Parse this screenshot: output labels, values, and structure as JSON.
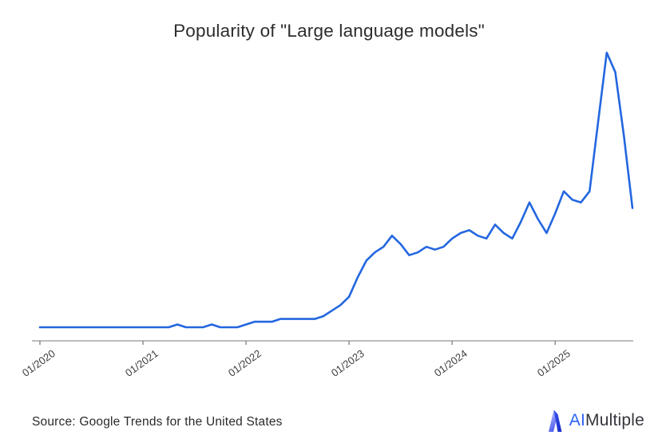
{
  "title": "Popularity of \"Large language models\"",
  "source_note": "Source: Google Trends for the United States",
  "logo": {
    "name": "AIMultiple",
    "text_ai": "AI",
    "text_rest": "Multiple"
  },
  "colors": {
    "line": "#2367df",
    "axis": "#bdbdbd",
    "tick": "#8f8f8f",
    "tick_label": "#3f3f3f",
    "title": "#2d2d2d",
    "source": "#2a2a2a",
    "logo_ai": "#2e62f6",
    "logo_rest": "#36353e",
    "logo_mark_light": "#c3c9f9",
    "logo_mark_dark": "#1b30cf"
  },
  "chart_data": {
    "type": "line",
    "title": "Popularity of \"Large language models\"",
    "xlabel": "",
    "ylabel": "",
    "ylim": [
      0,
      100
    ],
    "grid": false,
    "legend": "none",
    "x_tick_labels": [
      "01/2020",
      "01/2021",
      "01/2022",
      "01/2023",
      "01/2024",
      "01/2025"
    ],
    "x_tick_month_interval": 12,
    "x": [
      "2020-01",
      "2020-02",
      "2020-03",
      "2020-04",
      "2020-05",
      "2020-06",
      "2020-07",
      "2020-08",
      "2020-09",
      "2020-10",
      "2020-11",
      "2020-12",
      "2021-01",
      "2021-02",
      "2021-03",
      "2021-04",
      "2021-05",
      "2021-06",
      "2021-07",
      "2021-08",
      "2021-09",
      "2021-10",
      "2021-11",
      "2021-12",
      "2022-01",
      "2022-02",
      "2022-03",
      "2022-04",
      "2022-05",
      "2022-06",
      "2022-07",
      "2022-08",
      "2022-09",
      "2022-10",
      "2022-11",
      "2022-12",
      "2023-01",
      "2023-02",
      "2023-03",
      "2023-04",
      "2023-05",
      "2023-06",
      "2023-07",
      "2023-08",
      "2023-09",
      "2023-10",
      "2023-11",
      "2023-12",
      "2024-01",
      "2024-02",
      "2024-03",
      "2024-04",
      "2024-05",
      "2024-06",
      "2024-07",
      "2024-08",
      "2024-09",
      "2024-10",
      "2024-11",
      "2024-12",
      "2025-01",
      "2025-02",
      "2025-03",
      "2025-04",
      "2025-05",
      "2025-06",
      "2025-07",
      "2025-08",
      "2025-09",
      "2025-10"
    ],
    "series": [
      {
        "name": "Large language models",
        "values": [
          1,
          1,
          1,
          1,
          1,
          1,
          1,
          1,
          1,
          1,
          1,
          1,
          1,
          1,
          1,
          1,
          2,
          1,
          1,
          1,
          2,
          1,
          1,
          1,
          2,
          3,
          3,
          3,
          4,
          4,
          4,
          4,
          4,
          5,
          7,
          9,
          12,
          19,
          25,
          28,
          30,
          34,
          31,
          27,
          28,
          30,
          29,
          30,
          33,
          35,
          36,
          34,
          33,
          38,
          35,
          33,
          39,
          46,
          40,
          35,
          42,
          50,
          47,
          46,
          50,
          75,
          100,
          93,
          70,
          44
        ]
      }
    ],
    "source": "Google Trends for the United States"
  }
}
